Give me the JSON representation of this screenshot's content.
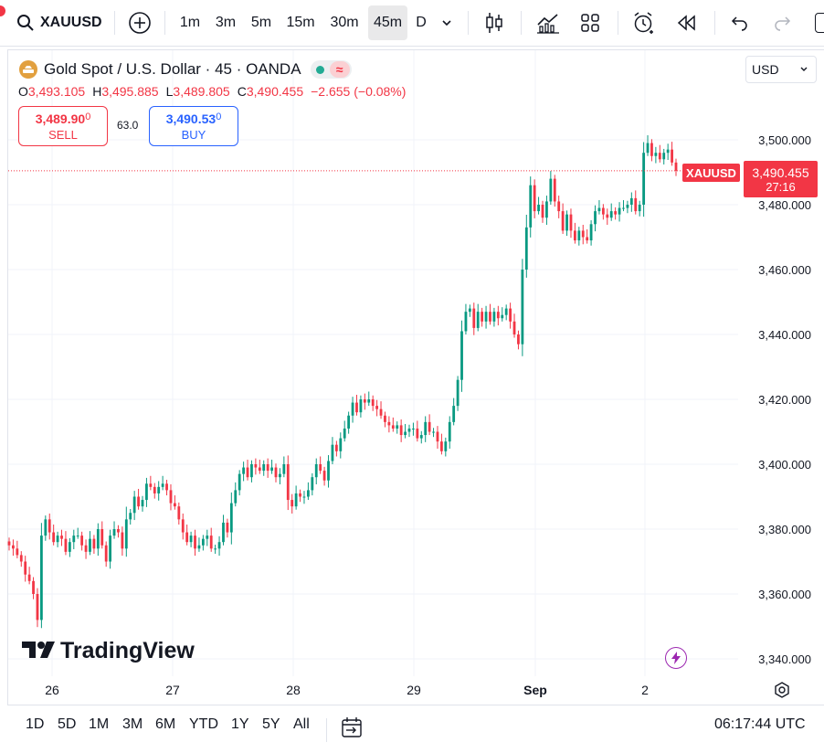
{
  "toolbar": {
    "symbol": "XAUUSD",
    "intervals": [
      "1m",
      "3m",
      "5m",
      "15m",
      "30m",
      "45m",
      "D"
    ],
    "active_interval": "45m"
  },
  "legend": {
    "title": "Gold Spot / U.S. Dollar · 45 · OANDA",
    "o_label": "O",
    "o_value": "3,493.105",
    "h_label": "H",
    "h_value": "3,495.885",
    "l_label": "L",
    "l_value": "3,489.805",
    "c_label": "C",
    "c_value": "3,490.455",
    "change": "−2.655 (−0.08%)"
  },
  "trade": {
    "sell_price_main": "3,489.90",
    "sell_price_sup": "0",
    "sell_label": "SELL",
    "spread": "63.0",
    "buy_price_main": "3,490.53",
    "buy_price_sup": "0",
    "buy_label": "BUY"
  },
  "currency": "USD",
  "price_tag": {
    "symbol": "XAUUSD",
    "price": "3,490.455",
    "countdown": "27:16"
  },
  "chart_data": {
    "type": "candlestick",
    "symbol": "XAUUSD",
    "interval": "45m",
    "y_ticks": [
      "3,500.000",
      "3,480.000",
      "3,460.000",
      "3,440.000",
      "3,420.000",
      "3,400.000",
      "3,380.000",
      "3,360.000",
      "3,340.000"
    ],
    "ylim": [
      3336,
      3521
    ],
    "x_ticks": [
      "26",
      "27",
      "28",
      "29",
      "Sep",
      "2"
    ],
    "last_price": 3490.455,
    "closes": [
      3375,
      3374,
      3372,
      3370,
      3366,
      3364,
      3360,
      3352,
      3378,
      3383,
      3379,
      3376,
      3378,
      3377,
      3373,
      3376,
      3378,
      3378,
      3375,
      3373,
      3377,
      3374,
      3380,
      3375,
      3370,
      3378,
      3380,
      3379,
      3374,
      3383,
      3385,
      3390,
      3387,
      3389,
      3394,
      3393,
      3391,
      3393,
      3394,
      3392,
      3388,
      3387,
      3383,
      3379,
      3376,
      3378,
      3374,
      3375,
      3377,
      3378,
      3374,
      3374,
      3376,
      3382,
      3379,
      3388,
      3392,
      3397,
      3399,
      3396,
      3400,
      3399,
      3398,
      3400,
      3398,
      3399,
      3396,
      3397,
      3400,
      3389,
      3387,
      3391,
      3390,
      3390,
      3392,
      3396,
      3400,
      3398,
      3395,
      3401,
      3406,
      3404,
      3408,
      3411,
      3415,
      3419,
      3416,
      3420,
      3419,
      3420,
      3418,
      3417,
      3415,
      3413,
      3412,
      3411,
      3412,
      3409,
      3410,
      3411,
      3411,
      3408,
      3409,
      3413,
      3410,
      3410,
      3407,
      3404,
      3407,
      3413,
      3418,
      3426,
      3441,
      3447,
      3448,
      3442,
      3447,
      3444,
      3447,
      3444,
      3447,
      3445,
      3446,
      3448,
      3444,
      3440,
      3437,
      3460,
      3473,
      3486,
      3478,
      3480,
      3476,
      3481,
      3488,
      3481,
      3478,
      3472,
      3477,
      3472,
      3469,
      3472,
      3470,
      3469,
      3474,
      3478,
      3479,
      3477,
      3476,
      3478,
      3477,
      3479,
      3479,
      3480,
      3482,
      3478,
      3480,
      3496,
      3499,
      3495,
      3496,
      3494,
      3496,
      3497,
      3493,
      3490.455
    ]
  }
}
